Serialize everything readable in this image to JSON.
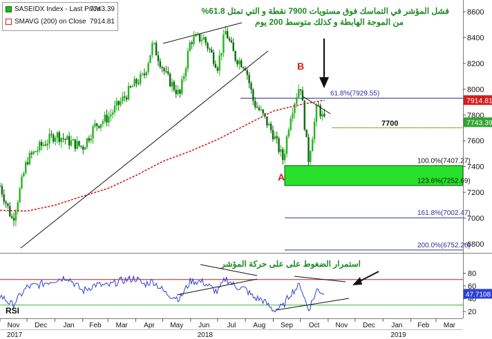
{
  "legend": {
    "series1_name": "SASEIDX Index - Last Price",
    "series1_value": "7743.39",
    "series2_name": "SMAVG (200)  on Close",
    "series2_value": "7914.81"
  },
  "annotations": {
    "top_line1": "فشل المؤشر في التماسك فوق مستويات 7900 نقطة و التي تمثل 61.8%",
    "top_line2": "من الموجة الهابطة و كذلك متوسط 200 يوم",
    "rsi_note": "استمرار الضغوط على على حركة المؤشر",
    "point_a": "A",
    "point_b": "B",
    "level_7700": "7700",
    "rsi_label": "RSI"
  },
  "price_tags": {
    "sma": "7914.81",
    "last": "7743.39",
    "rsi": "47.7108"
  },
  "fib_labels": [
    "61.8%(7929.55)",
    "100.0%(7407.27)",
    "123.6%(7252.69)",
    "161.8%(7002.47)",
    "200.0%(6752.26)"
  ],
  "colors": {
    "candle_up": "#22b41e",
    "candle_down": "#0b6a0b",
    "sma": "#d61b1b",
    "rsi_line": "#2b3fd6",
    "annotation": "#1d8b22",
    "fib_line": "#28309a",
    "support_zone": "#27e12b"
  },
  "chart_data": [
    {
      "type": "candlestick",
      "title": "SASEIDX Index - Last Price",
      "y_ticks": [
        6800,
        7000,
        7200,
        7400,
        7600,
        7800,
        8000,
        8200,
        8400,
        8600
      ],
      "ylim": [
        6700,
        8650
      ],
      "x_ticks": [
        "Nov",
        "Dec",
        "Jan",
        "Feb",
        "Mar",
        "Apr",
        "May",
        "Jun",
        "Jul",
        "Aug",
        "Sep",
        "Oct",
        "Nov",
        "Dec",
        "Jan",
        "Feb",
        "Mar"
      ],
      "x_year_labels": [
        "2017",
        "2018",
        "2019"
      ],
      "xlim": [
        "2017-11-01",
        "2019-03-31"
      ],
      "series": [
        {
          "name": "SASEIDX Index - Last Price",
          "x": [
            "2017-11-01",
            "2017-11-15",
            "2017-12-01",
            "2017-12-15",
            "2018-01-02",
            "2018-01-15",
            "2018-02-01",
            "2018-02-15",
            "2018-03-01",
            "2018-03-15",
            "2018-04-01",
            "2018-04-10",
            "2018-04-20",
            "2018-05-05",
            "2018-05-20",
            "2018-06-01",
            "2018-06-15",
            "2018-07-01",
            "2018-07-10",
            "2018-07-20",
            "2018-08-01",
            "2018-08-10",
            "2018-08-20",
            "2018-09-01",
            "2018-09-12",
            "2018-09-20",
            "2018-10-01",
            "2018-10-10",
            "2018-10-20",
            "2018-10-28"
          ],
          "close": [
            7250,
            6980,
            7450,
            7550,
            7650,
            7600,
            7550,
            7720,
            7780,
            7900,
            8050,
            8100,
            8350,
            8100,
            7950,
            8380,
            8400,
            8180,
            8450,
            8250,
            8180,
            7900,
            7800,
            7650,
            7450,
            7800,
            8050,
            7450,
            7880,
            7743.39
          ]
        },
        {
          "name": "SMAVG (200)  on Close",
          "x": [
            "2017-11-01",
            "2017-12-01",
            "2018-01-01",
            "2018-02-01",
            "2018-03-01",
            "2018-04-01",
            "2018-05-01",
            "2018-06-01",
            "2018-07-01",
            "2018-08-01",
            "2018-09-01",
            "2018-10-01",
            "2018-10-28"
          ],
          "values": [
            7060,
            7055,
            7100,
            7170,
            7230,
            7330,
            7440,
            7520,
            7610,
            7720,
            7830,
            7880,
            7914.81
          ]
        }
      ],
      "levels": [
        {
          "label": "7700",
          "value": 7700
        },
        {
          "label": "61.8%(7929.55)",
          "value": 7929.55
        },
        {
          "label": "100.0%(7407.27)",
          "value": 7407.27
        },
        {
          "label": "123.6%(7252.69)",
          "value": 7252.69
        },
        {
          "label": "161.8%(7002.47)",
          "value": 7002.47
        },
        {
          "label": "200.0%(6752.26)",
          "value": 6752.26
        }
      ],
      "support_zone": [
        7252.69,
        7407.27
      ],
      "last_price": 7743.39,
      "sma_last": 7914.81
    },
    {
      "type": "line",
      "title": "RSI",
      "y_ticks": [
        20,
        40,
        60,
        80
      ],
      "ylim": [
        15,
        85
      ],
      "overbought": 70,
      "oversold": 30,
      "series": [
        {
          "name": "RSI",
          "x": [
            "2017-11-01",
            "2017-11-15",
            "2017-12-01",
            "2017-12-15",
            "2018-01-02",
            "2018-01-15",
            "2018-02-01",
            "2018-02-15",
            "2018-03-01",
            "2018-03-15",
            "2018-04-01",
            "2018-04-10",
            "2018-04-20",
            "2018-05-05",
            "2018-05-20",
            "2018-06-01",
            "2018-06-15",
            "2018-07-01",
            "2018-07-10",
            "2018-07-20",
            "2018-08-01",
            "2018-08-10",
            "2018-08-20",
            "2018-09-01",
            "2018-09-12",
            "2018-09-20",
            "2018-10-01",
            "2018-10-10",
            "2018-10-20",
            "2018-10-28"
          ],
          "values": [
            45,
            30,
            58,
            62,
            70,
            74,
            52,
            62,
            60,
            68,
            72,
            62,
            68,
            48,
            40,
            68,
            66,
            50,
            72,
            60,
            55,
            42,
            38,
            22,
            28,
            48,
            62,
            22,
            55,
            47.71
          ]
        }
      ],
      "last_value": 47.7108
    }
  ]
}
